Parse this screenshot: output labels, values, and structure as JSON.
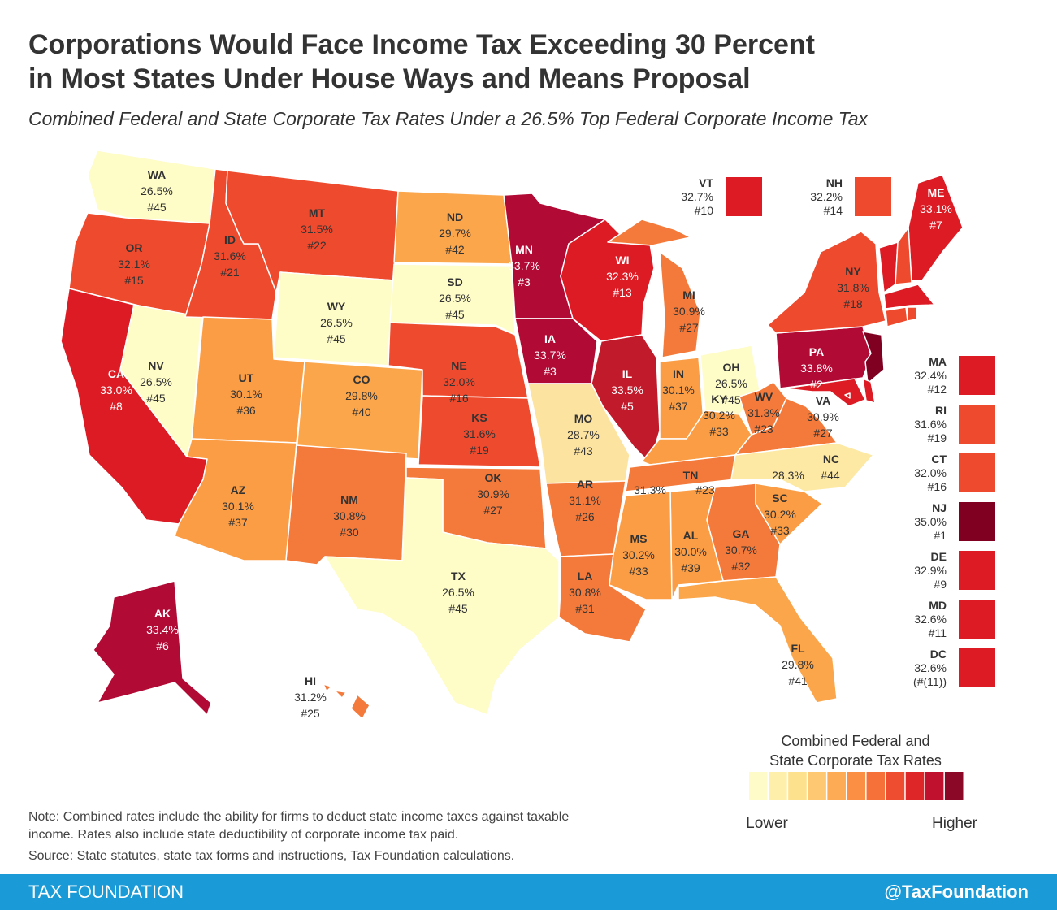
{
  "header": {
    "title": [
      "Corporations Would Face Income Tax Exceeding 30 Percent",
      "in Most States Under House Ways and Means Proposal"
    ],
    "subtitle": "Combined Federal and State Corporate Tax Rates Under a 26.5% Top Federal Corporate Income Tax"
  },
  "states": [
    {
      "abbr": "WA",
      "rate": "26.5%",
      "rank": "#45",
      "color": "#fefcc7"
    },
    {
      "abbr": "OR",
      "rate": "32.1%",
      "rank": "#15",
      "color": "#ee4a2e"
    },
    {
      "abbr": "CA",
      "rate": "33.0%",
      "rank": "#8",
      "color": "#dc1b24"
    },
    {
      "abbr": "NV",
      "rate": "26.5%",
      "rank": "#45",
      "color": "#fefcc7"
    },
    {
      "abbr": "ID",
      "rate": "31.6%",
      "rank": "#21",
      "color": "#ee4a2e"
    },
    {
      "abbr": "MT",
      "rate": "31.5%",
      "rank": "#22",
      "color": "#ee4a2e"
    },
    {
      "abbr": "WY",
      "rate": "26.5%",
      "rank": "#45",
      "color": "#fefcc7"
    },
    {
      "abbr": "UT",
      "rate": "30.1%",
      "rank": "#36",
      "color": "#fa9d45"
    },
    {
      "abbr": "CO",
      "rate": "29.8%",
      "rank": "#40",
      "color": "#fba64b"
    },
    {
      "abbr": "AZ",
      "rate": "30.1%",
      "rank": "#37",
      "color": "#fa9d45"
    },
    {
      "abbr": "NM",
      "rate": "30.8%",
      "rank": "#30",
      "color": "#f47a3b"
    },
    {
      "abbr": "ND",
      "rate": "29.7%",
      "rank": "#42",
      "color": "#fba64b"
    },
    {
      "abbr": "SD",
      "rate": "26.5%",
      "rank": "#45",
      "color": "#fefcc7"
    },
    {
      "abbr": "NE",
      "rate": "32.0%",
      "rank": "#16",
      "color": "#ee4a2e"
    },
    {
      "abbr": "KS",
      "rate": "31.6%",
      "rank": "#19",
      "color": "#ee4a2e"
    },
    {
      "abbr": "OK",
      "rate": "30.9%",
      "rank": "#27",
      "color": "#f47a3b"
    },
    {
      "abbr": "TX",
      "rate": "26.5%",
      "rank": "#45",
      "color": "#fefcc7"
    },
    {
      "abbr": "MN",
      "rate": "33.7%",
      "rank": "#3",
      "color": "#b10a35"
    },
    {
      "abbr": "IA",
      "rate": "33.7%",
      "rank": "#3",
      "color": "#b10a35"
    },
    {
      "abbr": "MO",
      "rate": "28.7%",
      "rank": "#43",
      "color": "#fde3a0"
    },
    {
      "abbr": "AR",
      "rate": "31.1%",
      "rank": "#26",
      "color": "#f47a3b"
    },
    {
      "abbr": "LA",
      "rate": "30.8%",
      "rank": "#31",
      "color": "#f47a3b"
    },
    {
      "abbr": "WI",
      "rate": "32.3%",
      "rank": "#13",
      "color": "#dc1b24"
    },
    {
      "abbr": "IL",
      "rate": "33.5%",
      "rank": "#5",
      "color": "#c11a2b"
    },
    {
      "abbr": "MI",
      "rate": "30.9%",
      "rank": "#27",
      "color": "#f47a3b"
    },
    {
      "abbr": "IN",
      "rate": "30.1%",
      "rank": "#37",
      "color": "#fa9d45"
    },
    {
      "abbr": "OH",
      "rate": "26.5%",
      "rank": "#45",
      "color": "#fefcc7"
    },
    {
      "abbr": "KY",
      "rate": "30.2%",
      "rank": "#33",
      "color": "#fa9d45"
    },
    {
      "abbr": "TN",
      "rate": "31.3%",
      "rank": "#23",
      "color": "#f47a3b"
    },
    {
      "abbr": "WV",
      "rate": "31.3%",
      "rank": "#23",
      "color": "#f47a3b"
    },
    {
      "abbr": "VA",
      "rate": "30.9%",
      "rank": "#27",
      "color": "#f47a3b"
    },
    {
      "abbr": "NC",
      "rate": "28.3%",
      "rank": "#44",
      "color": "#fde9a3"
    },
    {
      "abbr": "SC",
      "rate": "30.2%",
      "rank": "#33",
      "color": "#fa9d45"
    },
    {
      "abbr": "GA",
      "rate": "30.7%",
      "rank": "#32",
      "color": "#f47a3b"
    },
    {
      "abbr": "AL",
      "rate": "30.0%",
      "rank": "#39",
      "color": "#fa9d45"
    },
    {
      "abbr": "MS",
      "rate": "30.2%",
      "rank": "#33",
      "color": "#fa9d45"
    },
    {
      "abbr": "FL",
      "rate": "29.8%",
      "rank": "#41",
      "color": "#fba64b"
    },
    {
      "abbr": "PA",
      "rate": "33.8%",
      "rank": "#2",
      "color": "#b10a35"
    },
    {
      "abbr": "NY",
      "rate": "31.8%",
      "rank": "#18",
      "color": "#ee4a2e"
    },
    {
      "abbr": "ME",
      "rate": "33.1%",
      "rank": "#7",
      "color": "#dc1b24"
    },
    {
      "abbr": "AK",
      "rate": "33.4%",
      "rank": "#6",
      "color": "#b10a35"
    },
    {
      "abbr": "HI",
      "rate": "31.2%",
      "rank": "#25",
      "color": "#f47a3b"
    },
    {
      "abbr": "VT",
      "rate": "32.7%",
      "rank": "#10",
      "color": "#dc1b24"
    },
    {
      "abbr": "NH",
      "rate": "32.2%",
      "rank": "#14",
      "color": "#ee4a2e"
    },
    {
      "abbr": "MA",
      "rate": "32.4%",
      "rank": "#12",
      "color": "#dc1b24"
    },
    {
      "abbr": "RI",
      "rate": "31.6%",
      "rank": "#19",
      "color": "#ee4a2e"
    },
    {
      "abbr": "CT",
      "rate": "32.0%",
      "rank": "#16",
      "color": "#ee4a2e"
    },
    {
      "abbr": "NJ",
      "rate": "35.0%",
      "rank": "#1",
      "color": "#7f0021"
    },
    {
      "abbr": "DE",
      "rate": "32.9%",
      "rank": "#9",
      "color": "#dc1b24"
    },
    {
      "abbr": "MD",
      "rate": "32.6%",
      "rank": "#11",
      "color": "#dc1b24"
    },
    {
      "abbr": "DC",
      "rate": "32.6%",
      "rank": "(#(11))",
      "color": "#dc1b24"
    }
  ],
  "legend": {
    "title": [
      "Combined Federal and",
      "State Corporate Tax Rates"
    ],
    "colors": [
      "#fffbc9",
      "#fef0ab",
      "#fee18d",
      "#fec771",
      "#fdab55",
      "#fb8f44",
      "#f6713a",
      "#ef4d30",
      "#de2528",
      "#c0112e",
      "#8c0827"
    ],
    "low": "Lower",
    "high": "Higher"
  },
  "note": [
    "Note: Combined rates include the ability for firms to deduct state income taxes against taxable",
    "income. Rates also include state deductibility of corporate income tax paid."
  ],
  "source": "Source: State statutes, state tax forms and instructions, Tax Foundation calculations.",
  "footer": {
    "left": "TAX FOUNDATION",
    "right": "@TaxFoundation"
  }
}
